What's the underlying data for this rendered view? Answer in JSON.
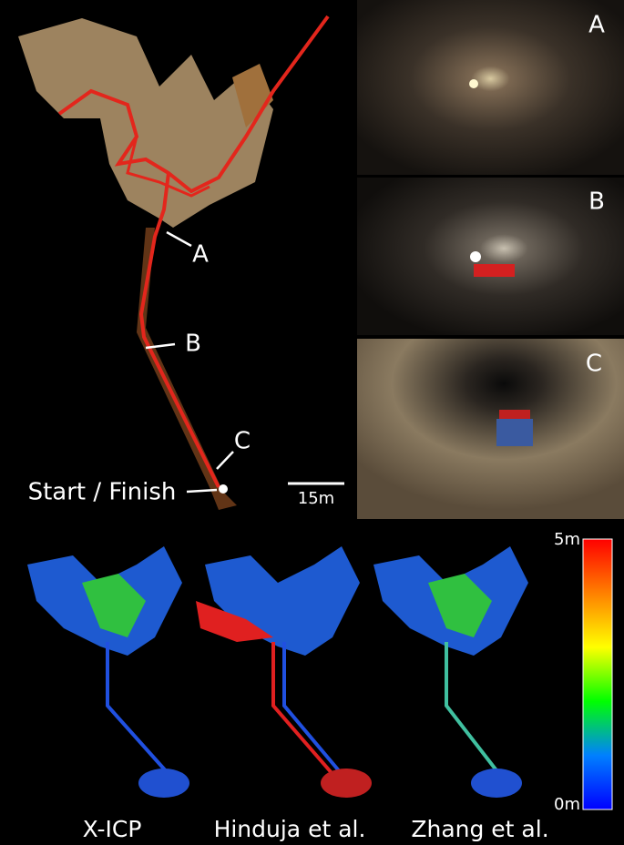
{
  "map": {
    "labels": [
      "A",
      "B",
      "C"
    ],
    "start_label": "Start / Finish",
    "scale_bar": "15m"
  },
  "photos": [
    {
      "label": "A"
    },
    {
      "label": "B"
    },
    {
      "label": "C"
    }
  ],
  "colorbar": {
    "max_label": "5m",
    "min_label": "0m"
  },
  "panels": [
    "X-ICP",
    "Hinduja et al.",
    "Zhang et al."
  ]
}
